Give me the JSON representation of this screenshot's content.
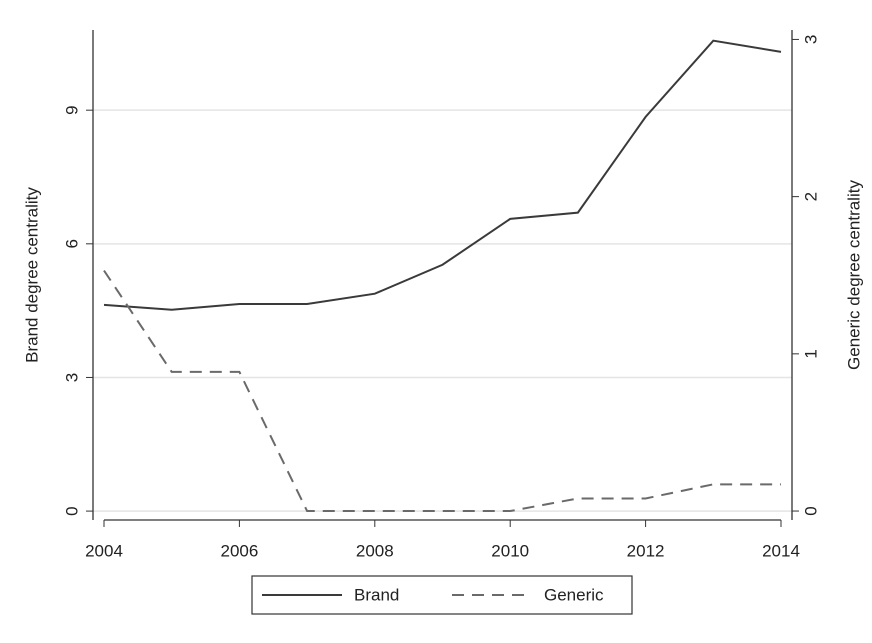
{
  "chart_data": {
    "type": "line",
    "x": [
      2004,
      2005,
      2006,
      2007,
      2008,
      2009,
      2010,
      2011,
      2012,
      2013,
      2014
    ],
    "series": [
      {
        "name": "Brand",
        "color": "#3a3a3a",
        "line_style": "solid",
        "values": [
          4.63,
          4.52,
          4.65,
          4.65,
          4.88,
          5.53,
          6.56,
          6.7,
          8.85,
          10.56,
          10.31
        ]
      },
      {
        "name": "Generic",
        "color": "#6a6a6a",
        "line_style": "dashed",
        "axis": "y2",
        "values": [
          1.53,
          0.885,
          0.885,
          0,
          0,
          0,
          0,
          0.08,
          0.08,
          0.17,
          0.17
        ]
      }
    ],
    "ylabel": "Brand degree centrality",
    "y2label": "Generic degree centrality",
    "xlim": [
      2004,
      2014
    ],
    "xticks": [
      2004,
      2006,
      2008,
      2010,
      2012,
      2014
    ],
    "ylim": [
      -0.2,
      10.8
    ],
    "yticks": [
      0,
      3,
      6,
      9
    ],
    "y2lim": [
      -0.057,
      3.06
    ],
    "y2ticks": [
      0,
      1,
      2,
      3
    ],
    "grid": true,
    "legend": "bottom"
  }
}
